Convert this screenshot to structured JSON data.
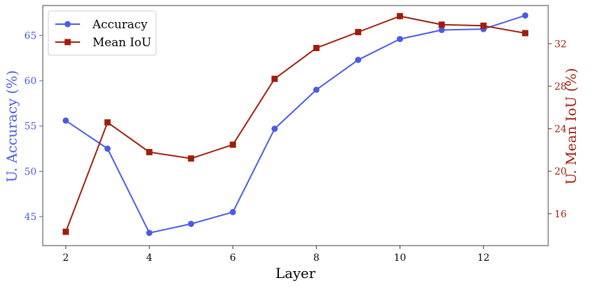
{
  "chart_data": {
    "type": "line",
    "xlabel": "Layer",
    "ylabel_left": "U. Accuracy (%)",
    "ylabel_right": "U. Mean IoU (%)",
    "x": [
      2,
      3,
      4,
      5,
      6,
      7,
      8,
      9,
      10,
      11,
      12,
      13
    ],
    "x_ticks": [
      2,
      4,
      6,
      8,
      10,
      12
    ],
    "xlim": [
      1.45,
      13.55
    ],
    "ylim_left": [
      41.8,
      68.3
    ],
    "yticks_left": [
      45,
      50,
      55,
      60,
      65
    ],
    "ylim_right": [
      13.0,
      35.6
    ],
    "yticks_right": [
      16,
      20,
      24,
      28,
      32
    ],
    "grid": false,
    "legend_position": "upper-left",
    "series": [
      {
        "name": "Accuracy",
        "axis": "left",
        "marker": "circle",
        "color": "#4a5be4",
        "values": [
          55.6,
          52.5,
          43.2,
          44.2,
          45.5,
          54.7,
          59.0,
          62.3,
          64.6,
          65.6,
          65.7,
          67.2
        ]
      },
      {
        "name": "Mean IoU",
        "axis": "right",
        "marker": "square",
        "color": "#a01d0c",
        "values": [
          14.3,
          24.6,
          21.8,
          21.2,
          22.5,
          28.7,
          31.6,
          33.1,
          34.6,
          33.8,
          33.7,
          33.0
        ]
      }
    ]
  }
}
